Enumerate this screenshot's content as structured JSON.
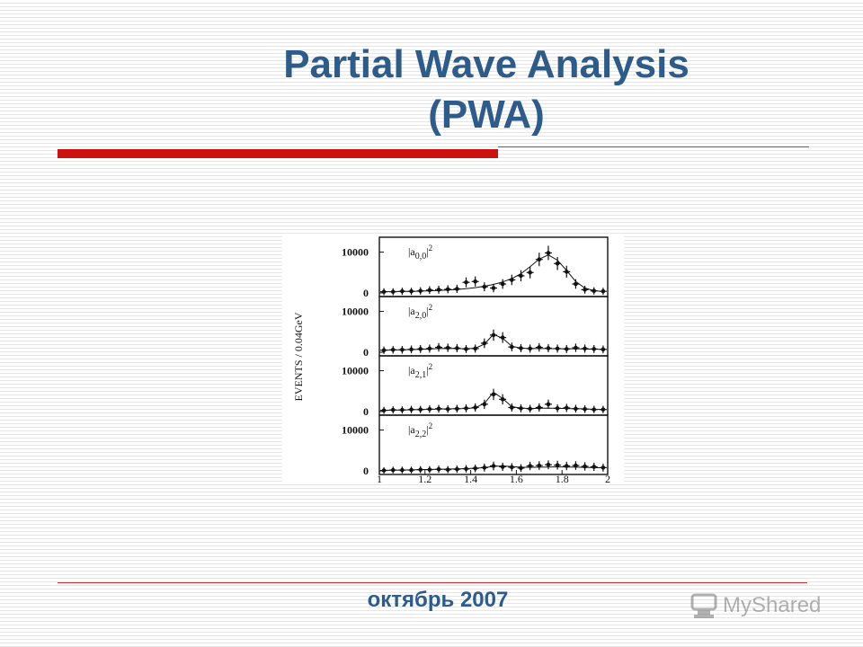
{
  "slide": {
    "title_line1": "Partial Wave Analysis",
    "title_line2": "(PWA)",
    "footer_date": "октябрь 2007",
    "watermark": "MyShared"
  },
  "colors": {
    "title": "#2e5c8a",
    "accent_red": "#cc1111",
    "plot_ink": "#111111"
  },
  "chart_data": {
    "type": "scatter",
    "ylabel": "EVENTS / 0.04GeV",
    "x_ticks": [
      "1",
      "1.2",
      "1.4",
      "1.6",
      "1.8",
      "2"
    ],
    "xlim": [
      1,
      2
    ],
    "panels": [
      {
        "label": "|a0,0|²",
        "label_base": "|a",
        "label_sub": "0,0",
        "label_sup": "2",
        "ylim": [
          0,
          11000
        ],
        "y_ticks": [
          "10000",
          "0"
        ],
        "x": [
          1.02,
          1.06,
          1.1,
          1.14,
          1.18,
          1.22,
          1.26,
          1.3,
          1.34,
          1.38,
          1.42,
          1.46,
          1.5,
          1.54,
          1.58,
          1.62,
          1.66,
          1.7,
          1.74,
          1.78,
          1.82,
          1.86,
          1.9,
          1.94,
          1.98
        ],
        "y": [
          300,
          300,
          400,
          400,
          500,
          700,
          800,
          900,
          1000,
          2600,
          2800,
          1500,
          1200,
          2200,
          3200,
          4200,
          5000,
          8200,
          9800,
          7200,
          5200,
          2200,
          800,
          500,
          400
        ],
        "fit": [
          300,
          330,
          370,
          400,
          450,
          520,
          600,
          700,
          850,
          1050,
          1300,
          1650,
          2100,
          2700,
          3500,
          4700,
          6400,
          8300,
          9300,
          8000,
          5500,
          2800,
          1200,
          550,
          350
        ]
      },
      {
        "label": "|a2,0|²",
        "label_base": "|a",
        "label_sub": "2,0",
        "label_sup": "2",
        "ylim": [
          0,
          11000
        ],
        "y_ticks": [
          "10000",
          "0"
        ],
        "x": [
          1.02,
          1.06,
          1.1,
          1.14,
          1.18,
          1.22,
          1.26,
          1.3,
          1.34,
          1.38,
          1.42,
          1.46,
          1.5,
          1.54,
          1.58,
          1.62,
          1.66,
          1.7,
          1.74,
          1.78,
          1.82,
          1.86,
          1.9,
          1.94,
          1.98
        ],
        "y": [
          500,
          600,
          600,
          700,
          800,
          900,
          1200,
          1100,
          1000,
          800,
          900,
          2200,
          4200,
          3600,
          1300,
          1000,
          900,
          1200,
          1000,
          900,
          800,
          1100,
          900,
          800,
          700
        ],
        "fit": [
          500,
          550,
          600,
          650,
          700,
          800,
          900,
          950,
          900,
          850,
          1000,
          2000,
          4400,
          3400,
          1500,
          1000,
          900,
          900,
          900,
          850,
          850,
          850,
          800,
          750,
          700
        ]
      },
      {
        "label": "|a2,1|²",
        "label_base": "|a",
        "label_sub": "2,1",
        "label_sup": "2",
        "ylim": [
          0,
          11000
        ],
        "y_ticks": [
          "10000",
          "0"
        ],
        "x": [
          1.02,
          1.06,
          1.1,
          1.14,
          1.18,
          1.22,
          1.26,
          1.3,
          1.34,
          1.38,
          1.42,
          1.46,
          1.5,
          1.54,
          1.58,
          1.62,
          1.66,
          1.7,
          1.74,
          1.78,
          1.82,
          1.86,
          1.9,
          1.94,
          1.98
        ],
        "y": [
          300,
          400,
          400,
          500,
          500,
          600,
          700,
          600,
          700,
          800,
          1000,
          1800,
          4200,
          3000,
          1000,
          800,
          700,
          1000,
          1800,
          800,
          900,
          700,
          600,
          500,
          500
        ],
        "fit": [
          300,
          350,
          400,
          450,
          500,
          550,
          600,
          650,
          700,
          750,
          950,
          2000,
          4700,
          3200,
          1200,
          850,
          750,
          800,
          850,
          800,
          750,
          700,
          650,
          550,
          500
        ]
      },
      {
        "label": "|a2,2|²",
        "label_base": "|a",
        "label_sub": "2,2",
        "label_sup": "2",
        "ylim": [
          0,
          11000
        ],
        "y_ticks": [
          "10000",
          "0"
        ],
        "x": [
          1.02,
          1.06,
          1.1,
          1.14,
          1.18,
          1.22,
          1.26,
          1.3,
          1.34,
          1.38,
          1.42,
          1.46,
          1.5,
          1.54,
          1.58,
          1.62,
          1.66,
          1.7,
          1.74,
          1.78,
          1.82,
          1.86,
          1.9,
          1.94,
          1.98
        ],
        "y": [
          100,
          200,
          200,
          200,
          300,
          300,
          400,
          300,
          400,
          500,
          600,
          800,
          1200,
          1000,
          900,
          700,
          1200,
          1300,
          1500,
          1400,
          1200,
          1300,
          1100,
          1000,
          800
        ],
        "fit": [
          100,
          150,
          200,
          250,
          300,
          350,
          400,
          450,
          500,
          550,
          650,
          800,
          1100,
          1200,
          1050,
          900,
          850,
          900,
          950,
          1000,
          950,
          900,
          850,
          800,
          750
        ]
      }
    ]
  }
}
